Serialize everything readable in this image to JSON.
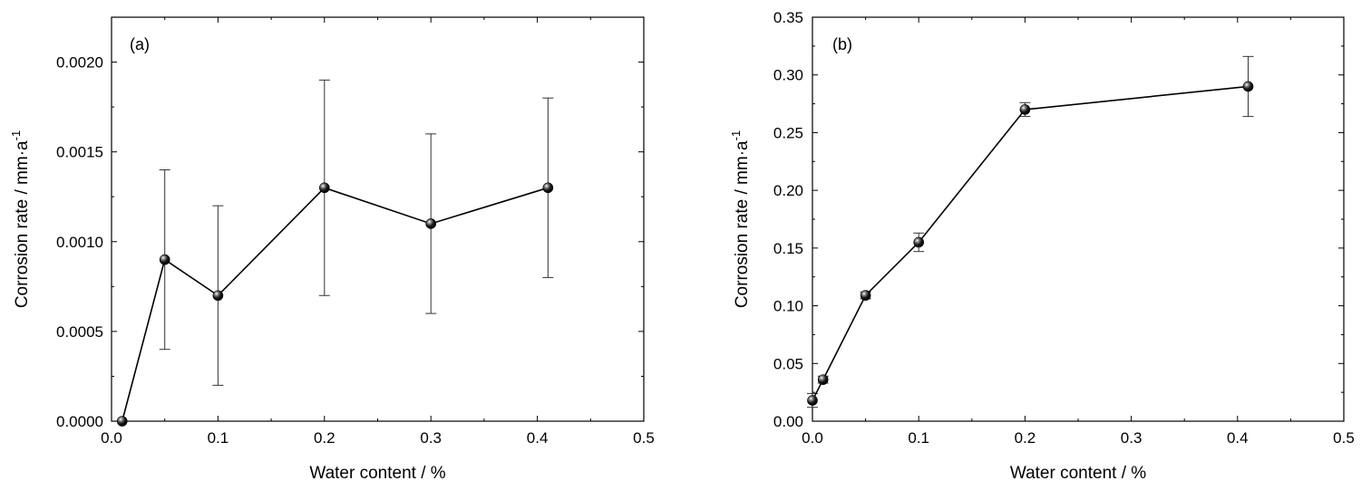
{
  "chart_data": [
    {
      "type": "scatter",
      "panel_label": "(a)",
      "xlabel": "Water content  / %",
      "ylabel": "Corrosion rate  / mm·a",
      "ylabel_superscript": "-1",
      "xlim": [
        0.0,
        0.5
      ],
      "ylim": [
        0.0,
        0.00225
      ],
      "x_ticks": [
        "0.0",
        "0.1",
        "0.2",
        "0.3",
        "0.4",
        "0.5"
      ],
      "y_ticks": [
        "0.0000",
        "0.0005",
        "0.0010",
        "0.0015",
        "0.0020"
      ],
      "grid": false,
      "line_color": "#000000",
      "marker_color": "#000000",
      "series": [
        {
          "x": [
            0.01,
            0.05,
            0.1,
            0.2,
            0.3,
            0.41
          ],
          "y": [
            0.0,
            0.0009,
            0.0007,
            0.0013,
            0.0011,
            0.0013
          ],
          "error_low": [
            0.0,
            0.0004,
            0.0002,
            0.0007,
            0.0006,
            0.0008
          ],
          "error_high": [
            0.0,
            0.0014,
            0.0012,
            0.0019,
            0.0016,
            0.0018
          ]
        }
      ]
    },
    {
      "type": "scatter",
      "panel_label": "(b)",
      "xlabel": "Water content  /  %",
      "ylabel": "Corrosion rate / mm·a",
      "ylabel_superscript": "-1",
      "xlim": [
        0.0,
        0.5
      ],
      "ylim": [
        0.0,
        0.35
      ],
      "x_ticks": [
        "0.0",
        "0.1",
        "0.2",
        "0.3",
        "0.4",
        "0.5"
      ],
      "y_ticks": [
        "0.00",
        "0.05",
        "0.10",
        "0.15",
        "0.20",
        "0.25",
        "0.30",
        "0.35"
      ],
      "grid": false,
      "line_color": "#000000",
      "marker_color": "#000000",
      "series": [
        {
          "x": [
            0.0,
            0.01,
            0.05,
            0.1,
            0.2,
            0.41
          ],
          "y": [
            0.018,
            0.036,
            0.109,
            0.155,
            0.27,
            0.29
          ],
          "error_low": [
            0.012,
            0.033,
            0.106,
            0.147,
            0.264,
            0.264
          ],
          "error_high": [
            0.024,
            0.039,
            0.112,
            0.163,
            0.276,
            0.316
          ]
        }
      ]
    }
  ]
}
